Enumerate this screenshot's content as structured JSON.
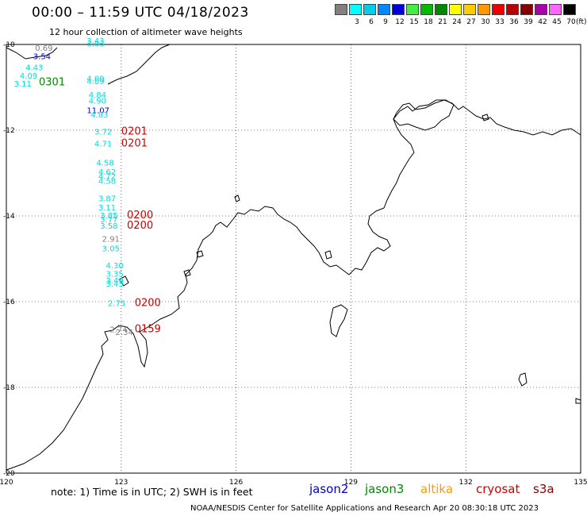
{
  "header": {
    "title": "00:00 – 11:59 UTC 04/18/2023",
    "subtitle": "12 hour collection of altimeter wave heights"
  },
  "scale": {
    "unit": "(ft)",
    "swatches": [
      {
        "color": "#808080",
        "label": ""
      },
      {
        "color": "#00ffff",
        "label": "3"
      },
      {
        "color": "#00ccee",
        "label": "6"
      },
      {
        "color": "#0088ff",
        "label": "9"
      },
      {
        "color": "#0000dd",
        "label": "12"
      },
      {
        "color": "#44ee44",
        "label": "15"
      },
      {
        "color": "#00bb00",
        "label": "18"
      },
      {
        "color": "#008800",
        "label": "21"
      },
      {
        "color": "#ffff00",
        "label": "24"
      },
      {
        "color": "#ffcc00",
        "label": "27"
      },
      {
        "color": "#ff9900",
        "label": "30"
      },
      {
        "color": "#ee0000",
        "label": "33"
      },
      {
        "color": "#bb0000",
        "label": "36"
      },
      {
        "color": "#880000",
        "label": "39"
      },
      {
        "color": "#aa00aa",
        "label": "42"
      },
      {
        "color": "#ff66ff",
        "label": "45"
      },
      {
        "color": "#000000",
        "label": "70"
      }
    ]
  },
  "axes": {
    "lat_labels": [
      "-10",
      "-12",
      "-14",
      "-16",
      "-18",
      "-20"
    ],
    "lon_labels": [
      "120",
      "123",
      "126",
      "129",
      "132",
      "135"
    ],
    "lat_values": [
      -10,
      -12,
      -14,
      -16,
      -18,
      -20
    ],
    "lon_values": [
      120,
      123,
      126,
      129,
      132,
      135
    ],
    "lon_range": [
      120,
      135
    ],
    "lat_range": [
      -20,
      -10
    ]
  },
  "observations": [
    {
      "text": "0.69",
      "lon": 120.75,
      "lat": -10.15,
      "color": "#808080"
    },
    {
      "text": "3.43",
      "lon": 122.1,
      "lat": -9.98,
      "color": "#00dddd"
    },
    {
      "text": "3.03",
      "lon": 122.1,
      "lat": -10.05,
      "color": "#00dddd"
    },
    {
      "text": "3.54",
      "lon": 120.7,
      "lat": -10.34,
      "color": "#0000cc"
    },
    {
      "text": "4.43",
      "lon": 120.5,
      "lat": -10.6,
      "color": "#00dddd"
    },
    {
      "text": "4.09",
      "lon": 120.35,
      "lat": -10.8,
      "color": "#00dddd"
    },
    {
      "text": "3.11",
      "lon": 120.2,
      "lat": -10.98,
      "color": "#00dddd"
    },
    {
      "text": "4.09",
      "lon": 122.1,
      "lat": -10.86,
      "color": "#00dddd"
    },
    {
      "text": "4.09",
      "lon": 122.1,
      "lat": -10.93,
      "color": "#00dddd"
    },
    {
      "text": "4.84",
      "lon": 122.15,
      "lat": -11.24,
      "color": "#00dddd"
    },
    {
      "text": "4.90",
      "lon": 122.15,
      "lat": -11.38,
      "color": "#00dddd"
    },
    {
      "text": "11.07",
      "lon": 122.1,
      "lat": -11.6,
      "color": "#0000cc"
    },
    {
      "text": "4.83",
      "lon": 122.2,
      "lat": -11.7,
      "color": "#00dddd"
    },
    {
      "text": "3.72",
      "lon": 122.3,
      "lat": -12.1,
      "color": "#00dddd"
    },
    {
      "text": "4.71",
      "lon": 122.3,
      "lat": -12.38,
      "color": "#00dddd"
    },
    {
      "text": "4.58",
      "lon": 122.35,
      "lat": -12.82,
      "color": "#00dddd"
    },
    {
      "text": "4.62",
      "lon": 122.4,
      "lat": -13.04,
      "color": "#00dddd"
    },
    {
      "text": "4.72",
      "lon": 122.4,
      "lat": -13.14,
      "color": "#00dddd"
    },
    {
      "text": "4.58",
      "lon": 122.4,
      "lat": -13.25,
      "color": "#00dddd"
    },
    {
      "text": "3.87",
      "lon": 122.4,
      "lat": -13.66,
      "color": "#00dddd"
    },
    {
      "text": "3.11",
      "lon": 122.4,
      "lat": -13.87,
      "color": "#00dddd"
    },
    {
      "text": "3.85",
      "lon": 122.45,
      "lat": -14.06,
      "color": "#00dddd"
    },
    {
      "text": "3.77",
      "lon": 122.45,
      "lat": -14.15,
      "color": "#00dddd"
    },
    {
      "text": "3.58",
      "lon": 122.45,
      "lat": -14.3,
      "color": "#00dddd"
    },
    {
      "text": "2.91",
      "lon": 122.5,
      "lat": -14.6,
      "color": "#808080"
    },
    {
      "text": "3.05",
      "lon": 122.5,
      "lat": -14.82,
      "color": "#00dddd"
    },
    {
      "text": "4.30",
      "lon": 122.6,
      "lat": -15.22,
      "color": "#00dddd"
    },
    {
      "text": "3.35",
      "lon": 122.6,
      "lat": -15.42,
      "color": "#00dddd"
    },
    {
      "text": "3.49",
      "lon": 122.6,
      "lat": -15.57,
      "color": "#00dddd"
    },
    {
      "text": "3.43",
      "lon": 122.6,
      "lat": -15.65,
      "color": "#00dddd"
    },
    {
      "text": "2.75",
      "lon": 122.65,
      "lat": -16.1,
      "color": "#00dddd"
    },
    {
      "text": "2.74",
      "lon": 122.7,
      "lat": -16.71,
      "color": "#808080"
    },
    {
      "text": "2.34",
      "lon": 122.85,
      "lat": -16.78,
      "color": "#808080"
    }
  ],
  "time_labels": [
    {
      "text": "0301",
      "lon": 120.85,
      "lat": -10.95,
      "color": "#008800"
    },
    {
      "text": "0201",
      "lon": 123.0,
      "lat": -12.1,
      "color": "#cc0000"
    },
    {
      "text": "0201",
      "lon": 123.0,
      "lat": -12.38,
      "color": "#cc0000"
    },
    {
      "text": "0200",
      "lon": 123.15,
      "lat": -14.06,
      "color": "#cc0000"
    },
    {
      "text": "0200",
      "lon": 123.15,
      "lat": -14.3,
      "color": "#cc0000"
    },
    {
      "text": "0200",
      "lon": 123.35,
      "lat": -16.1,
      "color": "#cc0000"
    },
    {
      "text": "0159",
      "lon": 123.35,
      "lat": -16.71,
      "color": "#cc0000"
    }
  ],
  "footer": {
    "note": "note:  1) Time is in UTC;  2) SWH is in feet",
    "satellites": [
      {
        "name": "jason2",
        "color": "#0000cc"
      },
      {
        "name": "jason3",
        "color": "#008800"
      },
      {
        "name": "altika",
        "color": "#ff9900"
      },
      {
        "name": "cryosat",
        "color": "#cc0000"
      },
      {
        "name": "s3a",
        "color": "#880000"
      }
    ],
    "credit": "NOAA/NESDIS Center for Satellite Applications and Research    Apr 20 08:30:18 UTC 2023"
  }
}
